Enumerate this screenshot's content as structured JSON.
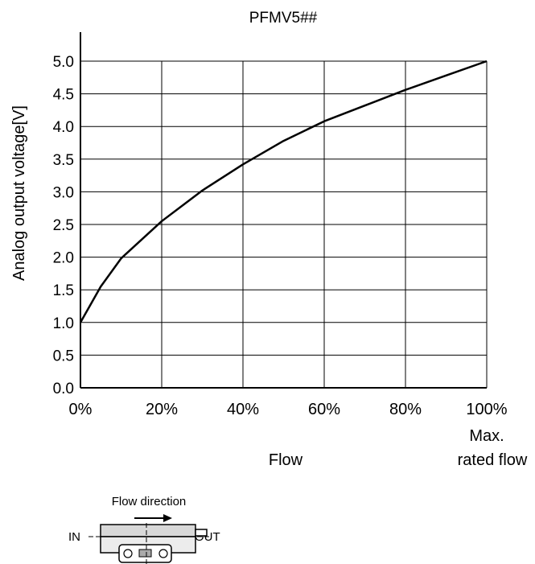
{
  "chart_data": {
    "type": "line",
    "title": "PFMV5##",
    "xlabel": "Flow",
    "ylabel": "Analog output voltage[V]",
    "x_tick_labels": [
      "0%",
      "20%",
      "40%",
      "60%",
      "80%",
      "100%"
    ],
    "x_end_note": [
      "Max.",
      "rated flow"
    ],
    "y_tick_labels": [
      "0.0",
      "0.5",
      "1.0",
      "1.5",
      "2.0",
      "2.5",
      "3.0",
      "3.5",
      "4.0",
      "4.5",
      "5.0"
    ],
    "xlim": [
      0,
      100
    ],
    "ylim": [
      0,
      5.0
    ],
    "grid": true,
    "series": [
      {
        "x": [
          0,
          5,
          10,
          20,
          30,
          40,
          50,
          60,
          70,
          80,
          90,
          100
        ],
        "values": [
          1.0,
          1.55,
          1.98,
          2.55,
          3.02,
          3.42,
          3.78,
          4.08,
          4.32,
          4.56,
          4.78,
          5.0
        ]
      }
    ]
  },
  "diagram": {
    "flow_direction_label": "Flow direction",
    "in_label": "IN",
    "out_label": "OUT"
  }
}
